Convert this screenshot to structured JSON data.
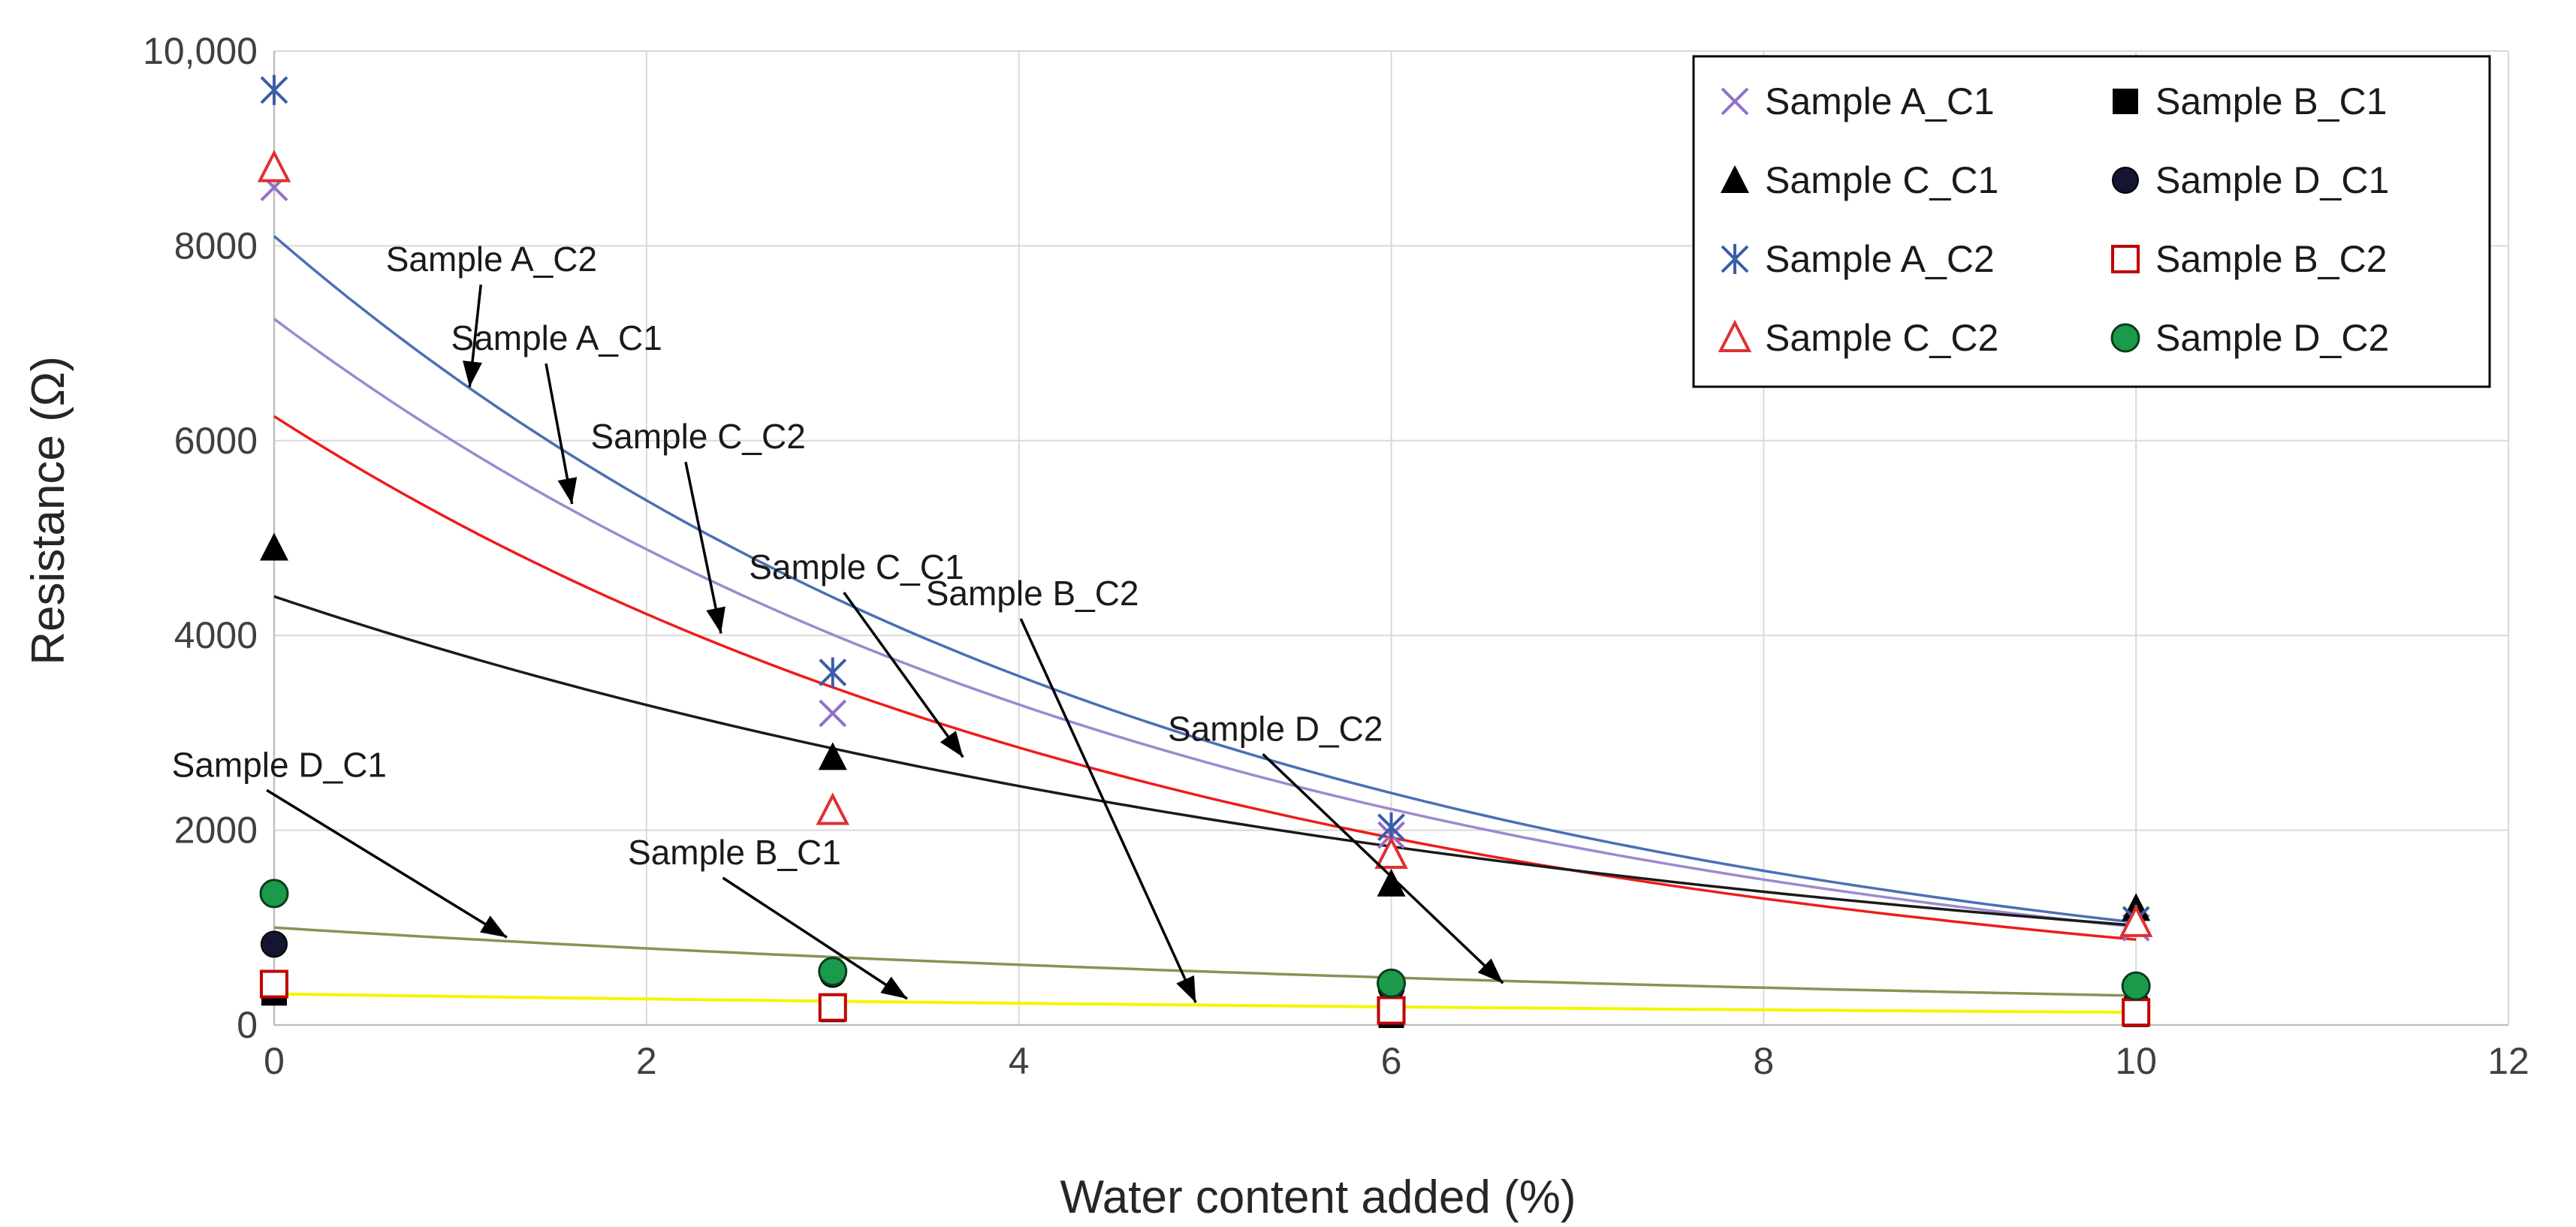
{
  "chart_data": {
    "type": "scatter",
    "title": "",
    "xlabel": "Water content added (%)",
    "ylabel": "Resistance (Ω)",
    "xlim": [
      0,
      12
    ],
    "ylim": [
      0,
      10000
    ],
    "xticks": [
      {
        "value": 0,
        "label": "0"
      },
      {
        "value": 2,
        "label": "2"
      },
      {
        "value": 4,
        "label": "4"
      },
      {
        "value": 6,
        "label": "6"
      },
      {
        "value": 8,
        "label": "8"
      },
      {
        "value": 10,
        "label": "10"
      },
      {
        "value": 12,
        "label": "12"
      }
    ],
    "yticks": [
      {
        "value": 0,
        "label": "0"
      },
      {
        "value": 2000,
        "label": "2000"
      },
      {
        "value": 4000,
        "label": "4000"
      },
      {
        "value": 6000,
        "label": "6000"
      },
      {
        "value": 8000,
        "label": "8000"
      },
      {
        "value": 10000,
        "label": "10,000"
      }
    ],
    "grid": true,
    "legend_position": "top-right",
    "series": [
      {
        "name": "Sample A_C1",
        "marker": "x",
        "color": "#9370c8",
        "x": [
          0,
          3,
          6,
          10
        ],
        "y": [
          8600,
          3200,
          1950,
          1000
        ]
      },
      {
        "name": "Sample B_C1",
        "marker": "square",
        "color": "#000000",
        "x": [
          0,
          3,
          6,
          10
        ],
        "y": [
          330,
          160,
          100,
          110
        ]
      },
      {
        "name": "Sample C_C1",
        "marker": "triangle",
        "color": "#000000",
        "x": [
          0,
          3,
          6,
          10
        ],
        "y": [
          4900,
          2750,
          1450,
          1200
        ]
      },
      {
        "name": "Sample D_C1",
        "marker": "circle",
        "color": "#141433",
        "x": [
          0,
          3,
          6,
          10
        ],
        "y": [
          830,
          520,
          380,
          220
        ]
      },
      {
        "name": "Sample A_C2",
        "marker": "asterisk",
        "color": "#3a5da8",
        "x": [
          0,
          3,
          6,
          10
        ],
        "y": [
          9600,
          3620,
          2030,
          1080
        ]
      },
      {
        "name": "Sample B_C2",
        "marker": "square-open",
        "color": "#c00000",
        "x": [
          0,
          3,
          6,
          10
        ],
        "y": [
          420,
          180,
          150,
          130
        ]
      },
      {
        "name": "Sample C_C2",
        "marker": "triangle-open",
        "color": "#e03030",
        "x": [
          0,
          3,
          6,
          10
        ],
        "y": [
          8800,
          2200,
          1750,
          1050
        ]
      },
      {
        "name": "Sample D_C2",
        "marker": "circle-green",
        "color": "#1a9a4a",
        "x": [
          0,
          3,
          6,
          10
        ],
        "y": [
          1350,
          550,
          430,
          400
        ]
      }
    ],
    "trendlines": [
      {
        "name": "Sample A_C2",
        "type": "exponential",
        "a": 8100,
        "b": -0.204,
        "color": "#4a6fb5"
      },
      {
        "name": "Sample A_C1",
        "type": "exponential",
        "a": 7250,
        "b": -0.1975,
        "color": "#9b8ad0"
      },
      {
        "name": "Sample C_C2",
        "type": "exponential",
        "a": 6250,
        "b": -0.1964,
        "color": "#ee1c1c"
      },
      {
        "name": "Sample C_C1",
        "type": "exponential",
        "a": 4400,
        "b": -0.146,
        "color": "#1a1a1a"
      },
      {
        "name": "Sample D_C1",
        "type": "exponential",
        "a": 1000,
        "b": -0.12,
        "color": "#8f8f55"
      },
      {
        "name": "Sample B_C2",
        "type": "exponential",
        "a": 320,
        "b": -0.09,
        "color": "#f5f500"
      }
    ],
    "annotations": [
      {
        "text": "Sample A_C2",
        "label_x": 0.6,
        "label_y": 7740,
        "arrow_x": 1.05,
        "arrow_y": 6550
      },
      {
        "text": "Sample A_C1",
        "label_x": 0.95,
        "label_y": 6930,
        "arrow_x": 1.6,
        "arrow_y": 5350
      },
      {
        "text": "Sample C_C2",
        "label_x": 1.7,
        "label_y": 5920,
        "arrow_x": 2.4,
        "arrow_y": 4020
      },
      {
        "text": "Sample C_C1",
        "label_x": 2.55,
        "label_y": 4580,
        "arrow_x": 3.7,
        "arrow_y": 2750
      },
      {
        "text": "Sample B_C2",
        "label_x": 3.5,
        "label_y": 4310,
        "arrow_x": 4.95,
        "arrow_y": 230
      },
      {
        "text": "Sample D_C2",
        "label_x": 4.8,
        "label_y": 2920,
        "arrow_x": 6.6,
        "arrow_y": 430
      },
      {
        "text": "Sample D_C1",
        "label_x": -0.55,
        "label_y": 2550,
        "arrow_x": 1.25,
        "arrow_y": 900
      },
      {
        "text": "Sample B_C1",
        "label_x": 1.9,
        "label_y": 1650,
        "arrow_x": 3.4,
        "arrow_y": 270
      }
    ]
  }
}
